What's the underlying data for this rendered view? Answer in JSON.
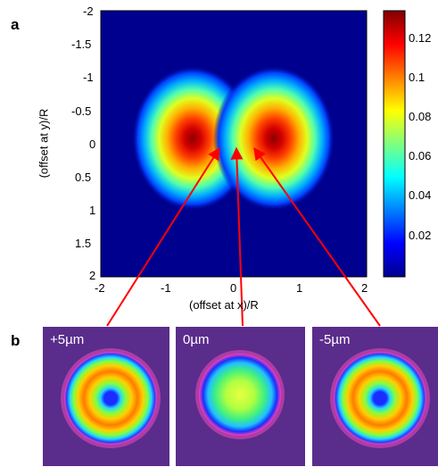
{
  "panels": {
    "a": "a",
    "b": "b"
  },
  "heatmap": {
    "xlabel": "(offset at x)/R",
    "ylabel": "(offset at y)/R",
    "x_ticks": [
      "-2",
      "-1",
      "0",
      "1",
      "2"
    ],
    "y_ticks": [
      "-2",
      "-1.5",
      "-1",
      "-0.5",
      "0",
      "0.5",
      "1",
      "1.5",
      "2"
    ],
    "colorbar_ticks": [
      "0.12",
      "0.1",
      "0.08",
      "0.06",
      "0.04",
      "0.02"
    ]
  },
  "photos": [
    {
      "label": "+5µm",
      "pattern": "ring"
    },
    {
      "label": "0µm",
      "pattern": "filled"
    },
    {
      "label": "-5µm",
      "pattern": "ring"
    }
  ],
  "colors": {
    "arrow": "#ff0000",
    "photo_background": "#5a2c8c",
    "heatmap_background": "#00008f"
  },
  "chart_data": {
    "type": "heatmap",
    "xlabel": "(offset at x)/R",
    "ylabel": "(offset at y)/R",
    "xlim": [
      -2,
      2
    ],
    "ylim": [
      2,
      -2
    ],
    "colorbar_range": [
      0,
      0.135
    ],
    "colormap": "jet",
    "peaks": [
      {
        "x": -0.6,
        "y": 0,
        "value": 0.13
      },
      {
        "x": 0.6,
        "y": 0,
        "value": 0.13
      }
    ]
  }
}
